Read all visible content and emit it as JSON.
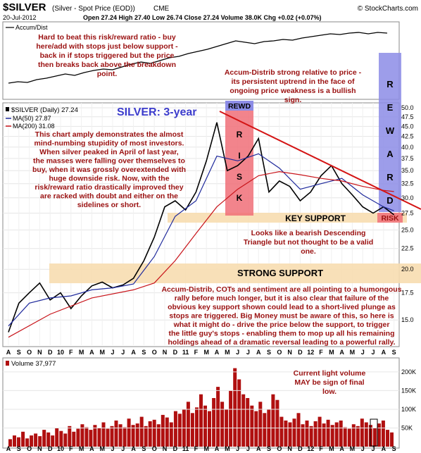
{
  "header": {
    "symbol": "$SILVER",
    "description": "(Silver - Spot Price (EOD))",
    "exchange": "CME",
    "credit": "© StockCharts.com",
    "date": "20-Jul-2012",
    "quote": "Open 27.24 High 27.40 Low 26.74 Close 27.24 Volume 38.0K Chg +0.02 (+0.07%)"
  },
  "colors": {
    "price": "#000000",
    "ma50": "#1f2a9c",
    "ma200": "#c8141a",
    "trendline": "#d41414",
    "risk_band": "#f06e78",
    "reward_band": "#8c8ce6",
    "support_band": "#f7ddb0",
    "annotation_text": "#9a1010",
    "title_text": "#3c3ccc",
    "volume_bar": "#b01010"
  },
  "chart_data": [
    {
      "type": "line",
      "title": "Accum/Dist",
      "series": [
        {
          "name": "Accum/Dist",
          "values": [
            0.2,
            0.22,
            0.21,
            0.25,
            0.27,
            0.3,
            0.33,
            0.31,
            0.35,
            0.38,
            0.4,
            0.39,
            0.43,
            0.47,
            0.5,
            0.48,
            0.52,
            0.56,
            0.58,
            0.62,
            0.65,
            0.68,
            0.72,
            0.76,
            0.8,
            0.78,
            0.76,
            0.79,
            0.8,
            0.82,
            0.81,
            0.84,
            0.86,
            0.88,
            0.9,
            0.89,
            0.91,
            0.92,
            0.9,
            0.92,
            0.91
          ]
        }
      ]
    },
    {
      "type": "line",
      "title": "SILVER: 3-year",
      "legend": [
        "$SILVER (Daily) 27.24",
        "MA(50) 27.87",
        "MA(200) 31.08"
      ],
      "x_ticks": [
        "A",
        "S",
        "O",
        "N",
        "D",
        "10",
        "F",
        "M",
        "A",
        "M",
        "J",
        "J",
        "A",
        "S",
        "O",
        "N",
        "D",
        "11",
        "F",
        "M",
        "A",
        "M",
        "J",
        "J",
        "A",
        "S",
        "O",
        "N",
        "D",
        "12",
        "F",
        "M",
        "A",
        "M",
        "J",
        "J",
        "A",
        "S"
      ],
      "y_ticks": [
        15.0,
        17.5,
        20.0,
        22.5,
        25.0,
        27.5,
        30.0,
        32.5,
        35.0,
        37.5,
        40.0,
        42.5,
        45.0,
        47.5,
        50.0
      ],
      "ylim": [
        13.0,
        51.0
      ],
      "scale": "log",
      "series": [
        {
          "name": "$SILVER",
          "x": [
            0,
            1,
            2,
            3,
            4,
            5,
            6,
            7,
            8,
            9,
            10,
            11,
            12,
            13,
            14,
            15,
            16,
            17,
            18,
            19,
            20,
            21,
            22,
            23,
            24,
            25,
            26,
            27,
            28,
            29,
            30,
            31,
            32,
            33,
            34,
            35,
            36,
            37
          ],
          "values": [
            14.0,
            16.5,
            17.5,
            18.5,
            16.8,
            17.5,
            16.0,
            17.2,
            18.2,
            18.6,
            18.0,
            18.3,
            19.0,
            21.0,
            24.0,
            28.5,
            29.5,
            28.0,
            31.0,
            37.0,
            46.0,
            35.0,
            36.0,
            38.0,
            42.0,
            31.0,
            33.0,
            32.0,
            29.5,
            31.0,
            34.0,
            36.0,
            32.5,
            30.5,
            28.5,
            27.5,
            28.5,
            27.24
          ]
        },
        {
          "name": "MA(50)",
          "x": [
            0,
            2,
            4,
            6,
            8,
            10,
            12,
            14,
            16,
            18,
            20,
            22,
            24,
            26,
            28,
            30,
            32,
            34,
            36,
            37
          ],
          "values": [
            14.5,
            16.5,
            17.0,
            17.2,
            17.8,
            18.0,
            18.4,
            21.5,
            27.0,
            29.5,
            38.0,
            37.0,
            38.5,
            35.5,
            31.5,
            32.5,
            33.5,
            30.5,
            28.5,
            27.87
          ]
        },
        {
          "name": "MA(200)",
          "x": [
            0,
            4,
            8,
            12,
            14,
            16,
            18,
            20,
            22,
            24,
            26,
            28,
            30,
            32,
            34,
            36,
            37
          ],
          "values": [
            13.6,
            15.5,
            17.0,
            17.8,
            18.5,
            21.0,
            24.5,
            28.5,
            31.5,
            34.0,
            34.8,
            34.2,
            33.5,
            33.0,
            32.0,
            31.3,
            31.08
          ]
        }
      ],
      "annotations": [
        "Hard to beat this risk/reward ratio - buy here/add with stops just below support - back in if stops triggered but the price then breaks back above the breakdown point.",
        "Accum-Distrib strong relative to price - its persistent uptrend in the face of ongoing price weakness is a bullish sign.",
        "This chart amply demonstrates the almost mind-numbing stupidity of most investors. When silver peaked in April of last year, the masses were falling over themselves to buy, when it was grossly overextended with huge downside risk. Now, with the risk/reward ratio drastically improved they are racked with doubt and either on the sidelines or short.",
        "Looks like a bearish Descending Triangle but not thought to be a valid one.",
        "Accum-Distrib, COTs and sentiment are all pointing to a humongous rally before much longer, but it is also clear that failure of the obvious key support shown could lead to a short-lived plunge as stops are triggered. Big Money must be aware of this, so here is what it might do - drive the price below the support, to trigger the little guy's stops - enabling them to mop up all his remaining holdings ahead of a dramatic reversal leading to a powerful rally."
      ],
      "labels": {
        "rewd": "REWD",
        "risk_letters": [
          "R",
          "I",
          "S",
          "K"
        ],
        "reward_letters": [
          "R",
          "E",
          "W",
          "A",
          "R",
          "D"
        ],
        "risk_tag": "RISK",
        "key_support": "KEY SUPPORT",
        "strong_support": "STRONG SUPPORT"
      }
    },
    {
      "type": "bar",
      "title": "Volume 37,977",
      "y_ticks": [
        "200K",
        "150K",
        "100K",
        "50K"
      ],
      "ylim": [
        0,
        230000
      ],
      "annotation": "Current light volume MAY be sign of final low.",
      "values": [
        20,
        30,
        25,
        40,
        22,
        30,
        35,
        28,
        45,
        38,
        30,
        50,
        42,
        35,
        55,
        40,
        48,
        60,
        52,
        45,
        58,
        50,
        65,
        48,
        55,
        70,
        60,
        52,
        75,
        58,
        62,
        80,
        55,
        68,
        72,
        60,
        85,
        78,
        65,
        95,
        88,
        100,
        120,
        90,
        105,
        140,
        110,
        95,
        130,
        160,
        120,
        100,
        150,
        210,
        180,
        140,
        130,
        110,
        95,
        120,
        90,
        100,
        140,
        125,
        80,
        70,
        65,
        75,
        90,
        60,
        70,
        55,
        68,
        80,
        62,
        72,
        58,
        65,
        70,
        52,
        48,
        60,
        55,
        75,
        65,
        58,
        50,
        62,
        70,
        45,
        38
      ]
    }
  ]
}
